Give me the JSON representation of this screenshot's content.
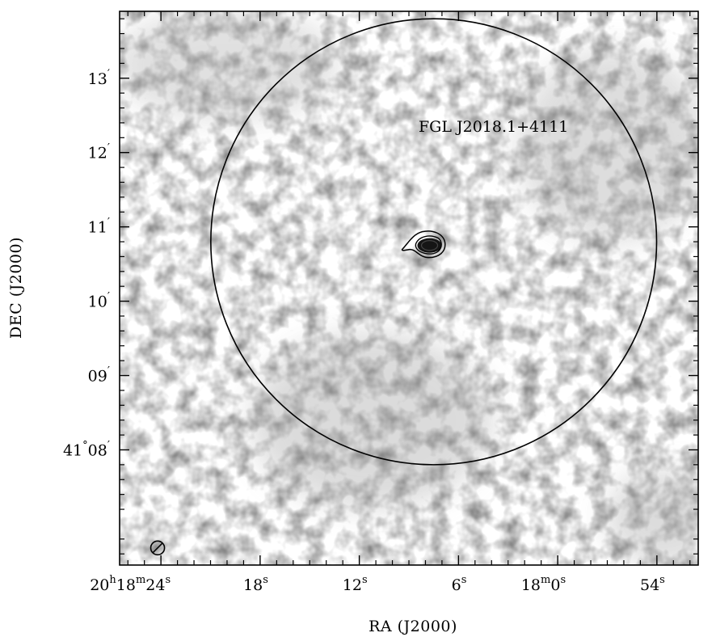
{
  "chart_data": {
    "type": "heatmap",
    "annotation": "FGL J2018.1+4111",
    "xlabel": "RA (J2000)",
    "ylabel": "DEC (J2000)",
    "x_axis": {
      "unit": "seconds of RA offset from 20h18m00s",
      "range": [
        26.5,
        -8.5
      ],
      "ticks": [
        {
          "value": 24,
          "main": "20",
          "sup1": "h",
          "mid": "18",
          "sup2": "m",
          "tail": "24",
          "sup3": "s"
        },
        {
          "value": 18,
          "main": "",
          "sup1": "",
          "mid": "",
          "sup2": "",
          "tail": "18",
          "sup3": "s"
        },
        {
          "value": 12,
          "main": "",
          "sup1": "",
          "mid": "",
          "sup2": "",
          "tail": "12",
          "sup3": "s"
        },
        {
          "value": 6,
          "main": "",
          "sup1": "",
          "mid": "",
          "sup2": "",
          "tail": "6",
          "sup3": "s"
        },
        {
          "value": 0,
          "main": "",
          "sup1": "",
          "mid": "18",
          "sup2": "m",
          "tail": "0",
          "sup3": "s"
        },
        {
          "value": -6,
          "main": "",
          "sup1": "",
          "mid": "",
          "sup2": "",
          "tail": "54",
          "sup3": "s"
        }
      ]
    },
    "y_axis": {
      "unit": "arcmin above 41 deg",
      "range": [
        6.45,
        13.9
      ],
      "ticks": [
        {
          "value": 8,
          "pre": "41",
          "deg": "°",
          "label": "08",
          "prime": "′"
        },
        {
          "value": 9,
          "pre": "",
          "deg": "",
          "label": "09",
          "prime": "′"
        },
        {
          "value": 10,
          "pre": "",
          "deg": "",
          "label": "10",
          "prime": "′"
        },
        {
          "value": 11,
          "pre": "",
          "deg": "",
          "label": "11",
          "prime": "′"
        },
        {
          "value": 12,
          "pre": "",
          "deg": "",
          "label": "12",
          "prime": "′"
        },
        {
          "value": 13,
          "pre": "",
          "deg": "",
          "label": "13",
          "prime": "′"
        }
      ]
    },
    "error_circle": {
      "center_ra_s": 7.5,
      "center_dec_arcmin": 10.8,
      "radius_arcmin": 3.0
    },
    "source": {
      "ra_s": 7.8,
      "dec_arcmin": 10.75
    },
    "contour_levels": 3,
    "beam": {
      "ra_s": 24.2,
      "dec_arcmin": 6.68
    },
    "colormap": "grayscale",
    "colors": {
      "frame": "#000000",
      "background": "#ffffff",
      "peak": "#151515"
    }
  }
}
